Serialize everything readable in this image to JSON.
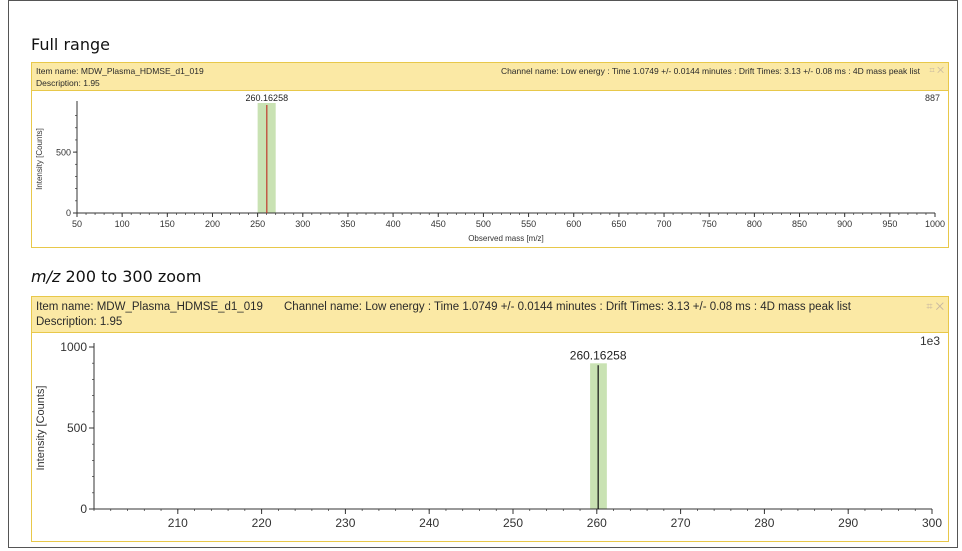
{
  "sections": [
    {
      "title": "Full range",
      "item_name": "Item name: MDW_Plasma_HDMSE_d1_019",
      "channel_name": "Channel name: Low energy : Time 1.0749 +/- 0.0144 minutes : Drift Times: 3.13 +/- 0.08 ms : 4D mass peak list",
      "description": "Description: 1.95",
      "scale_label": "887",
      "header_icons": {
        "pin": "pin-icon",
        "close": "close-icon"
      }
    },
    {
      "title_italic": "m/z",
      "title_rest": " 200 to 300 zoom",
      "item_name": "Item name: MDW_Plasma_HDMSE_d1_019",
      "channel_name": "Channel name: Low energy : Time 1.0749 +/- 0.0144 minutes : Drift Times: 3.13 +/- 0.08 ms : 4D mass peak list",
      "description": "Description: 1.95",
      "scale_label": "1e3",
      "header_icons": {
        "pin": "pin-icon",
        "close": "close-icon"
      }
    }
  ],
  "colors": {
    "header_bg": "#fbe9a5",
    "panel_border": "#e8c84a",
    "peak_band": "#c9e2b3",
    "peak_line_full": "#c0392b",
    "peak_line_zoom": "#111111"
  },
  "chart_data": [
    {
      "type": "bar",
      "xlabel": "Observed mass [m/z]",
      "ylabel": "Intensity [Counts]",
      "xlim": [
        50,
        1000
      ],
      "ylim": [
        0,
        887
      ],
      "xticks": [
        50,
        100,
        150,
        200,
        250,
        300,
        350,
        400,
        450,
        500,
        550,
        600,
        650,
        700,
        750,
        800,
        850,
        900,
        950,
        1000
      ],
      "yticks": [
        0,
        500
      ],
      "grid": false,
      "points": [
        {
          "x": 260.16258,
          "y": 887,
          "label": "260.16258"
        }
      ],
      "highlight_band": [
        250,
        270
      ]
    },
    {
      "type": "bar",
      "xlabel": "",
      "ylabel": "Intensity [Counts]",
      "xlim": [
        200,
        300
      ],
      "ylim": [
        0,
        1000
      ],
      "xticks": [
        210,
        220,
        230,
        240,
        250,
        260,
        270,
        280,
        290,
        300
      ],
      "yticks": [
        0,
        500,
        1000
      ],
      "grid": false,
      "points": [
        {
          "x": 260.16258,
          "y": 887,
          "label": "260.16258"
        }
      ],
      "highlight_band": [
        259.2,
        261.2
      ]
    }
  ]
}
